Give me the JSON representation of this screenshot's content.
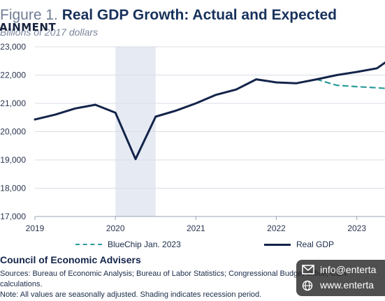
{
  "header": {
    "figure_label": "Figure 1.",
    "title": "Real GDP Growth: Actual and Expected",
    "subtitle": "Billions of 2017 dollars"
  },
  "watermark": {
    "logo_text": "AINMENT",
    "email": "info@enterta",
    "website": "www.enterta"
  },
  "legend": {
    "bluechip_label": "BlueChip Jan. 2023",
    "real_label": "Real GDP"
  },
  "footer": {
    "source_title": "Council of Economic Advisers",
    "sources_line1": "Sources: Bureau of Economic Analysis; Bureau of Labor Statistics; Congressional Budget Office; CEA",
    "sources_line2": "calculations.",
    "note": "Note: All values are seasonally adjusted. Shading indicates recession period."
  },
  "colors": {
    "real_gdp": "#13244a",
    "bluechip": "#2a9c98",
    "recession": "#e6eaf2",
    "grid": "#d9dde5"
  },
  "chart_data": {
    "type": "line",
    "ylabel": "Billions of 2017 dollars",
    "ylim": [
      17000,
      23000
    ],
    "yticks": [
      17000,
      18000,
      19000,
      20000,
      21000,
      22000,
      23000
    ],
    "ytick_labels": [
      "17,000",
      "18,000",
      "19,000",
      "20,000",
      "21,000",
      "22,000",
      "23,000"
    ],
    "xticks": [
      2019,
      2020,
      2021,
      2022,
      2023
    ],
    "xtick_labels": [
      "2019",
      "2020",
      "2021",
      "2022",
      "2023"
    ],
    "xlim": [
      2019,
      2023.35
    ],
    "recession": [
      2020.0,
      2020.5
    ],
    "grid": "horizontal",
    "series": [
      {
        "name": "Real GDP",
        "style": "solid",
        "x": [
          2019.0,
          2019.25,
          2019.5,
          2019.75,
          2020.0,
          2020.25,
          2020.5,
          2020.75,
          2021.0,
          2021.25,
          2021.5,
          2021.75,
          2022.0,
          2022.25,
          2022.5,
          2022.75,
          2023.0,
          2023.25,
          2023.35
        ],
        "values": [
          20430,
          20600,
          20820,
          20950,
          20670,
          19030,
          20530,
          20740,
          21000,
          21300,
          21490,
          21850,
          21740,
          21710,
          21850,
          22000,
          22110,
          22240,
          22440
        ]
      },
      {
        "name": "BlueChip Jan. 2023",
        "style": "dashed",
        "x": [
          2022.5,
          2022.75,
          2023.0,
          2023.25,
          2023.35
        ],
        "values": [
          21850,
          21640,
          21590,
          21550,
          21530
        ]
      }
    ]
  }
}
